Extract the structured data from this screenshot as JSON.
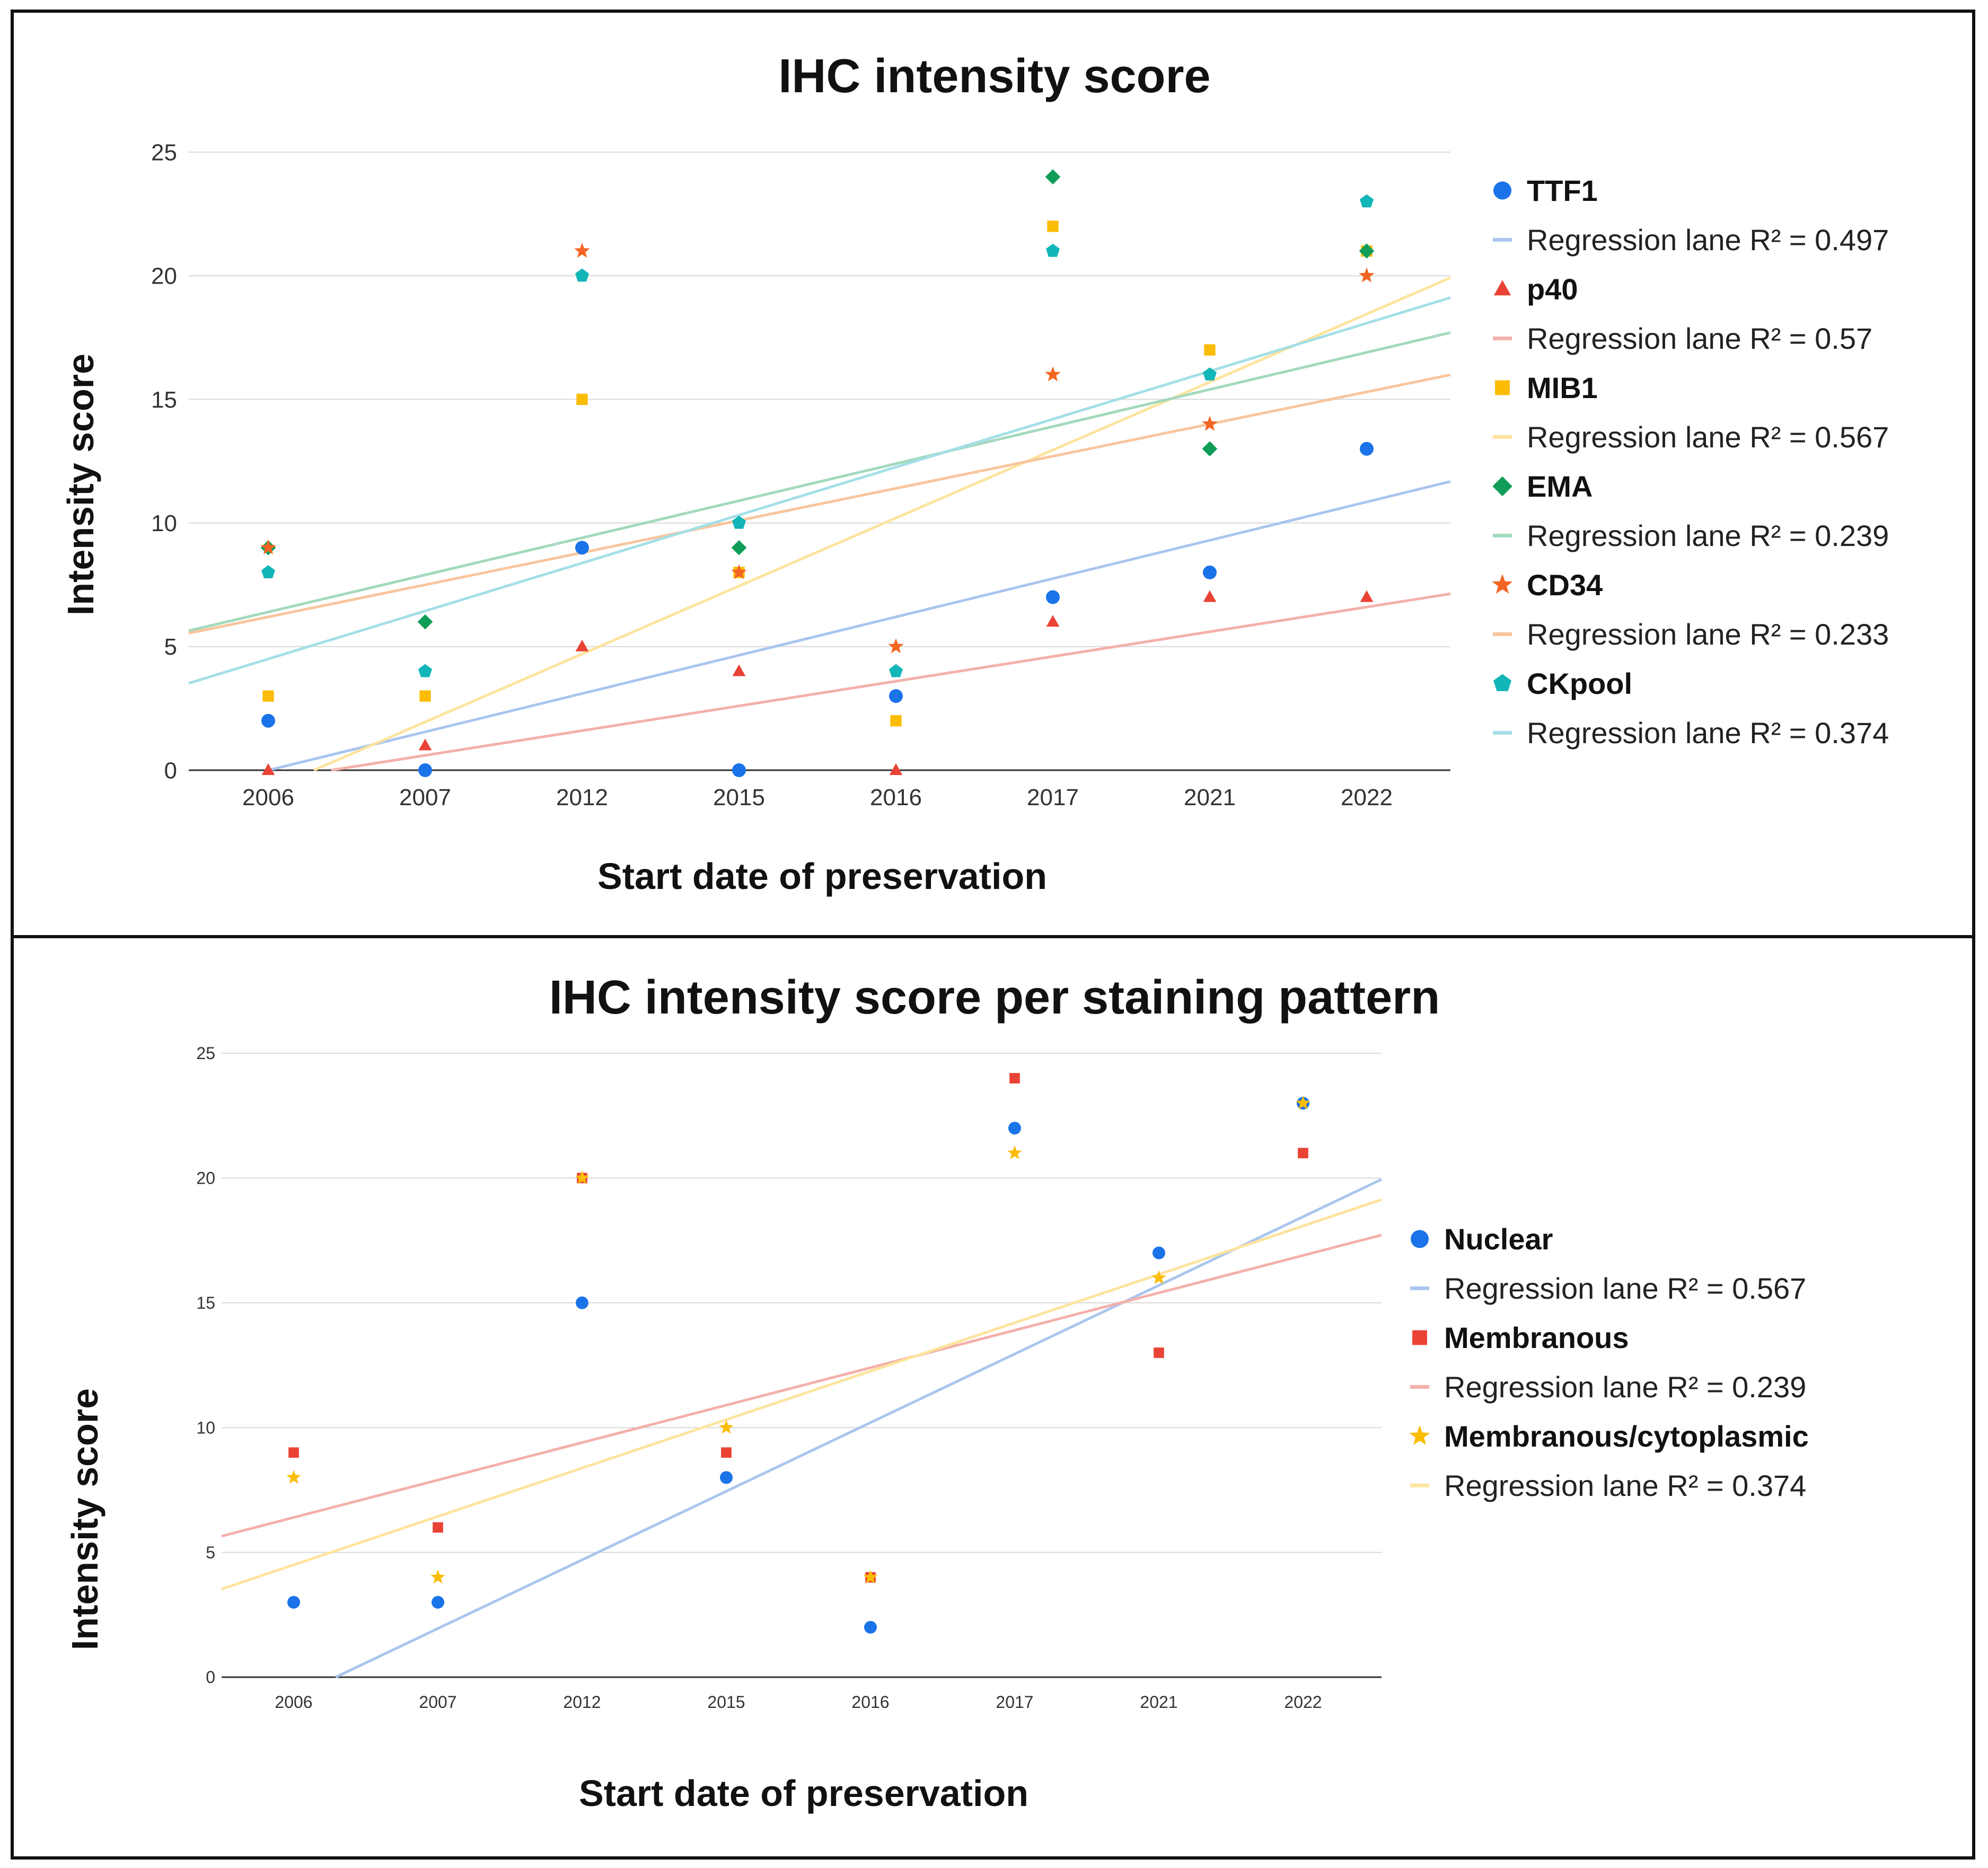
{
  "chart_data": [
    {
      "type": "scatter",
      "title": "IHC intensity score",
      "xlabel": "Start date of preservation",
      "ylabel": "Intensity score",
      "categories": [
        "2006",
        "2007",
        "2012",
        "2015",
        "2016",
        "2017",
        "2021",
        "2022"
      ],
      "ylim": [
        0,
        25
      ],
      "yticks": [
        "0",
        "5",
        "10",
        "15",
        "20",
        "25"
      ],
      "grid": true,
      "legend_position": "right",
      "series": [
        {
          "name": "TTF1",
          "marker": "circle",
          "color": "#1a73e8",
          "trend_color": "#a9c5ee",
          "values": [
            2,
            0,
            9,
            0,
            3,
            7,
            8,
            13
          ],
          "trend": [
            0.0,
            1.55
          ],
          "trend_label": "Regression lane R² = 0.497"
        },
        {
          "name": "p40",
          "marker": "triangle",
          "color": "#ea4335",
          "trend_color": "#f4b0aa",
          "values": [
            0,
            1,
            5,
            4,
            0,
            6,
            7,
            7
          ],
          "trend": [
            -0.4,
            1.0
          ],
          "trend_label": "Regression lane R² = 0.57"
        },
        {
          "name": "MIB1",
          "marker": "square",
          "color": "#fbbc04",
          "trend_color": "#fde49e",
          "values": [
            3,
            3,
            15,
            8,
            2,
            22,
            17,
            21
          ],
          "trend": [
            -0.8,
            2.75
          ],
          "trend_label": "Regression lane R² = 0.567"
        },
        {
          "name": "EMA",
          "marker": "diamond",
          "color": "#0f9d58",
          "trend_color": "#a3d9bd",
          "values": [
            9,
            6,
            null,
            9,
            null,
            24,
            13,
            21
          ],
          "trend": [
            6.4,
            1.5
          ],
          "trend_label": "Regression lane R² = 0.239"
        },
        {
          "name": "CD34",
          "marker": "star",
          "color": "#f46524",
          "trend_color": "#f9c59d",
          "values": [
            9,
            null,
            21,
            8,
            5,
            16,
            14,
            20
          ],
          "trend": [
            6.2,
            1.3
          ],
          "trend_label": "Regression lane R² = 0.233"
        },
        {
          "name": "CKpool",
          "marker": "pentagon",
          "color": "#12b5b8",
          "trend_color": "#a4dfe6",
          "values": [
            8,
            4,
            20,
            10,
            4,
            21,
            16,
            23
          ],
          "trend": [
            4.5,
            1.94
          ],
          "trend_label": "Regression lane R² = 0.374"
        }
      ]
    },
    {
      "type": "scatter",
      "title": "IHC intensity score per staining pattern",
      "xlabel": "Start date of preservation",
      "ylabel": "Intensity score",
      "categories": [
        "2006",
        "2007",
        "2012",
        "2015",
        "2016",
        "2017",
        "2021",
        "2022"
      ],
      "ylim": [
        0,
        25
      ],
      "yticks": [
        "0",
        "5",
        "10",
        "15",
        "20",
        "25"
      ],
      "grid": true,
      "legend_position": "right",
      "series": [
        {
          "name": "Nuclear",
          "marker": "circle",
          "color": "#1a73e8",
          "trend_color": "#a9c5ee",
          "values": [
            3,
            3,
            15,
            8,
            2,
            22,
            17,
            23
          ],
          "trend": [
            -0.8,
            2.75
          ],
          "trend_label": "Regression lane R² = 0.567"
        },
        {
          "name": "Membranous",
          "marker": "square",
          "color": "#ea4335",
          "trend_color": "#f4b0aa",
          "values": [
            9,
            6,
            20,
            9,
            4,
            24,
            13,
            21
          ],
          "trend": [
            6.4,
            1.5
          ],
          "trend_label": "Regression lane R² = 0.239"
        },
        {
          "name": "Membranous/cytoplasmic",
          "marker": "star",
          "color": "#fbbc04",
          "trend_color": "#fde49e",
          "values": [
            8,
            4,
            20,
            10,
            4,
            21,
            16,
            23
          ],
          "trend": [
            4.5,
            1.94
          ],
          "trend_label": "Regression lane R² = 0.374"
        }
      ]
    }
  ]
}
